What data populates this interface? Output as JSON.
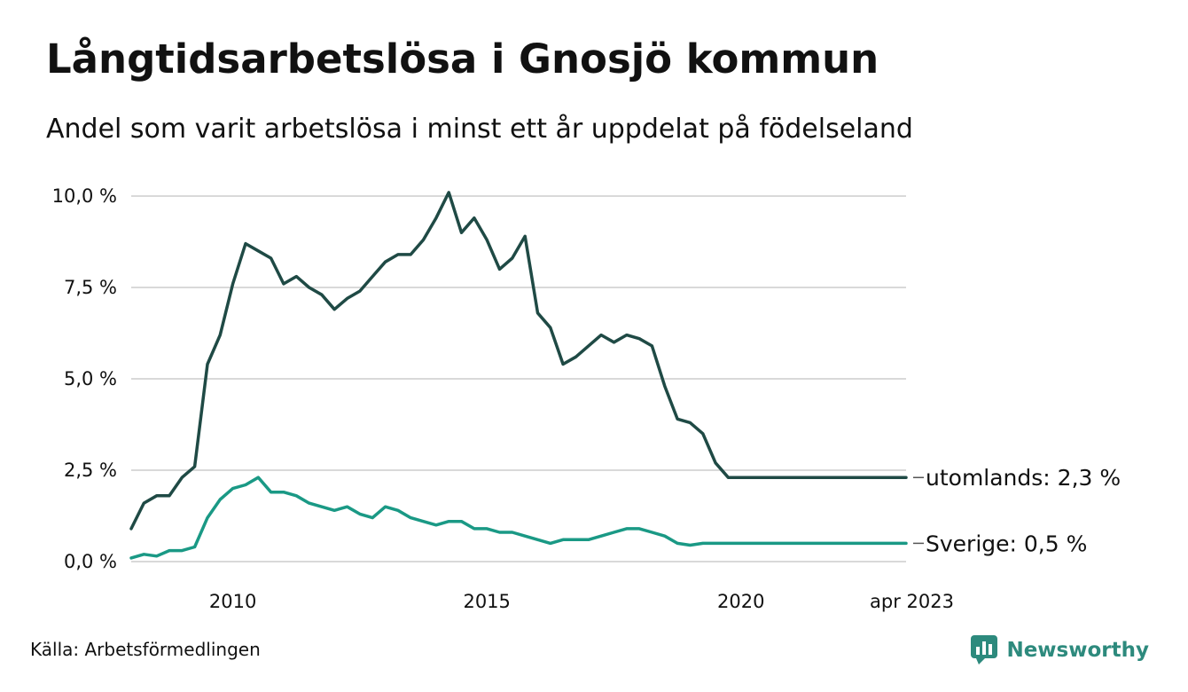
{
  "title": "Långtidsarbetslösa i Gnosjö kommun",
  "subtitle": "Andel som varit arbetslösa i minst ett år uppdelat på födelseland",
  "source": "Källa: Arbetsförmedlingen",
  "brand": "Newsworthy",
  "colors": {
    "utomlands": "#1f4a45",
    "sverige": "#1a9985",
    "grid": "#d9d9d9"
  },
  "chart_data": {
    "type": "line",
    "ylim": [
      0,
      10
    ],
    "xlim": [
      2008.0,
      2023.25
    ],
    "yticks": [
      0,
      2.5,
      5,
      7.5,
      10
    ],
    "ytick_labels": [
      "0,0 %",
      "2,5 %",
      "5,0 %",
      "7,5 %",
      "10,0 %"
    ],
    "xticks": [
      2010,
      2015,
      2020,
      2023.25
    ],
    "xtick_labels": [
      "2010",
      "2015",
      "2020",
      "apr 2023"
    ],
    "series": [
      {
        "name": "utomlands",
        "end_label": "utomlands: 2,3 %",
        "x": [
          2008.0,
          2008.25,
          2008.5,
          2008.75,
          2009.0,
          2009.25,
          2009.5,
          2009.75,
          2010.0,
          2010.25,
          2010.5,
          2010.75,
          2011.0,
          2011.25,
          2011.5,
          2011.75,
          2012.0,
          2012.25,
          2012.5,
          2012.75,
          2013.0,
          2013.25,
          2013.5,
          2013.75,
          2014.0,
          2014.25,
          2014.5,
          2014.75,
          2015.0,
          2015.25,
          2015.5,
          2015.75,
          2016.0,
          2016.25,
          2016.5,
          2016.75,
          2017.0,
          2017.25,
          2017.5,
          2017.75,
          2018.0,
          2018.25,
          2018.5,
          2018.75,
          2019.0,
          2019.25,
          2019.5,
          2019.75,
          2020.0,
          2020.25,
          2020.5,
          2020.75,
          2021.0,
          2021.25,
          2021.5,
          2021.75,
          2022.0,
          2022.25,
          2022.5,
          2022.75,
          2023.0,
          2023.25
        ],
        "values": [
          0.9,
          1.6,
          1.8,
          1.8,
          2.3,
          2.6,
          5.4,
          6.2,
          7.6,
          8.7,
          8.5,
          8.3,
          7.6,
          7.8,
          7.5,
          7.3,
          6.9,
          7.2,
          7.4,
          7.8,
          8.2,
          8.4,
          8.4,
          8.8,
          9.4,
          10.1,
          9.0,
          9.4,
          8.8,
          8.0,
          8.3,
          8.9,
          6.8,
          6.4,
          5.4,
          5.6,
          5.9,
          6.2,
          6.0,
          6.2,
          6.1,
          5.9,
          4.8,
          3.9,
          3.8,
          3.5,
          2.7,
          2.3,
          2.3,
          2.3,
          2.3,
          2.3,
          2.3,
          2.3,
          2.3,
          2.3,
          2.3,
          2.3,
          2.3,
          2.3,
          2.3,
          2.3
        ]
      },
      {
        "name": "Sverige",
        "end_label": "Sverige: 0,5 %",
        "x": [
          2008.0,
          2008.25,
          2008.5,
          2008.75,
          2009.0,
          2009.25,
          2009.5,
          2009.75,
          2010.0,
          2010.25,
          2010.5,
          2010.75,
          2011.0,
          2011.25,
          2011.5,
          2011.75,
          2012.0,
          2012.25,
          2012.5,
          2012.75,
          2013.0,
          2013.25,
          2013.5,
          2013.75,
          2014.0,
          2014.25,
          2014.5,
          2014.75,
          2015.0,
          2015.25,
          2015.5,
          2015.75,
          2016.0,
          2016.25,
          2016.5,
          2016.75,
          2017.0,
          2017.25,
          2017.5,
          2017.75,
          2018.0,
          2018.25,
          2018.5,
          2018.75,
          2019.0,
          2019.25,
          2019.5,
          2019.75,
          2020.0,
          2020.25,
          2020.5,
          2020.75,
          2021.0,
          2021.25,
          2021.5,
          2021.75,
          2022.0,
          2022.25,
          2022.5,
          2022.75,
          2023.0,
          2023.25
        ],
        "values": [
          0.1,
          0.2,
          0.15,
          0.3,
          0.3,
          0.4,
          1.2,
          1.7,
          2.0,
          2.1,
          2.3,
          1.9,
          1.9,
          1.8,
          1.6,
          1.5,
          1.4,
          1.5,
          1.3,
          1.2,
          1.5,
          1.4,
          1.2,
          1.1,
          1.0,
          1.1,
          1.1,
          0.9,
          0.9,
          0.8,
          0.8,
          0.7,
          0.6,
          0.5,
          0.6,
          0.6,
          0.6,
          0.7,
          0.8,
          0.9,
          0.9,
          0.8,
          0.7,
          0.5,
          0.45,
          0.5,
          0.5,
          0.5,
          0.5,
          0.5,
          0.5,
          0.5,
          0.5,
          0.5,
          0.5,
          0.5,
          0.5,
          0.5,
          0.5,
          0.5,
          0.5,
          0.5
        ]
      }
    ]
  }
}
